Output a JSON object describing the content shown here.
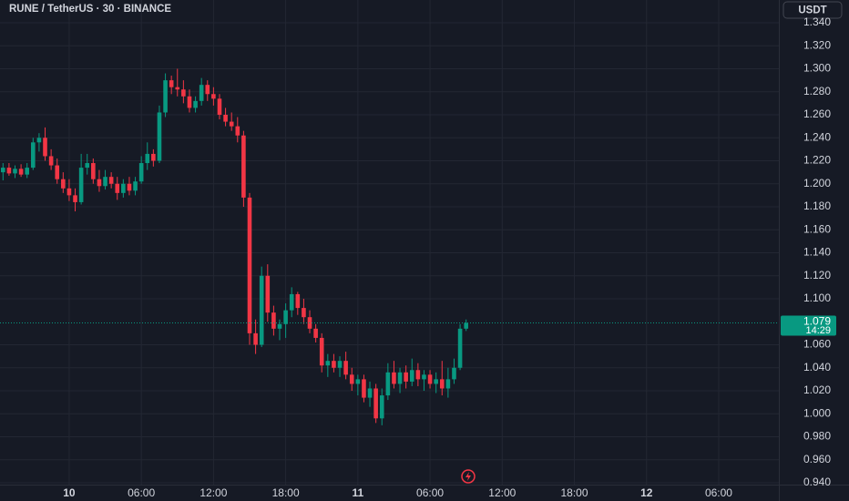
{
  "chart_data": {
    "type": "candlestick",
    "title": "RUNE / TetherUS · 30 · BINANCE",
    "currency_button": "USDT",
    "last_price": {
      "value": 1.079,
      "label": "1.079"
    },
    "countdown": "14:29",
    "up_color": "#089981",
    "down_color": "#f23645",
    "grid": true,
    "x": [
      "9 18:30",
      "9 19:00",
      "9 19:30",
      "9 20:00",
      "9 20:30",
      "9 21:00",
      "9 21:30",
      "9 22:00",
      "9 22:30",
      "9 23:00",
      "9 23:30",
      "10 00:00",
      "10 00:30",
      "10 01:00",
      "10 01:30",
      "10 02:00",
      "10 02:30",
      "10 03:00",
      "10 03:30",
      "10 04:00",
      "10 04:30",
      "10 05:00",
      "10 05:30",
      "10 06:00",
      "10 06:30",
      "10 07:00",
      "10 07:30",
      "10 08:00",
      "10 08:30",
      "10 09:00",
      "10 09:30",
      "10 10:00",
      "10 10:30",
      "10 11:00",
      "10 11:30",
      "10 12:00",
      "10 12:30",
      "10 13:00",
      "10 13:30",
      "10 14:00",
      "10 14:30",
      "10 15:00",
      "10 15:30",
      "10 16:00",
      "10 16:30",
      "10 17:00",
      "10 17:30",
      "10 18:00",
      "10 18:30",
      "10 19:00",
      "10 19:30",
      "10 20:00",
      "10 20:30",
      "10 21:00",
      "10 21:30",
      "10 22:00",
      "10 22:30",
      "10 23:00",
      "10 23:30",
      "11 00:00",
      "11 00:30",
      "11 01:00",
      "11 01:30",
      "11 02:00",
      "11 02:30",
      "11 03:00",
      "11 03:30",
      "11 04:00",
      "11 04:30",
      "11 05:00",
      "11 05:30",
      "11 06:00",
      "11 06:30",
      "11 07:00",
      "11 07:30",
      "11 08:00",
      "11 08:30",
      "11 09:00"
    ],
    "open": [
      1.21,
      1.214,
      1.209,
      1.213,
      1.208,
      1.214,
      1.236,
      1.24,
      1.224,
      1.216,
      1.204,
      1.196,
      1.19,
      1.184,
      1.214,
      1.218,
      1.204,
      1.198,
      1.206,
      1.2,
      1.192,
      1.2,
      1.194,
      1.202,
      1.218,
      1.226,
      1.22,
      1.262,
      1.29,
      1.284,
      1.282,
      1.276,
      1.266,
      1.272,
      1.286,
      1.278,
      1.274,
      1.26,
      1.254,
      1.25,
      1.242,
      1.188,
      1.07,
      1.06,
      1.12,
      1.088,
      1.074,
      1.078,
      1.09,
      1.104,
      1.092,
      1.084,
      1.074,
      1.066,
      1.042,
      1.046,
      1.04,
      1.046,
      1.034,
      1.026,
      1.03,
      1.014,
      1.022,
      0.996,
      1.016,
      1.036,
      1.026,
      1.036,
      1.028,
      1.038,
      1.03,
      1.034,
      1.026,
      1.03,
      1.022,
      1.03,
      1.04,
      1.074
    ],
    "high": [
      1.218,
      1.218,
      1.216,
      1.217,
      1.218,
      1.24,
      1.244,
      1.249,
      1.23,
      1.222,
      1.21,
      1.204,
      1.196,
      1.226,
      1.226,
      1.222,
      1.212,
      1.212,
      1.21,
      1.206,
      1.204,
      1.206,
      1.206,
      1.224,
      1.236,
      1.23,
      1.268,
      1.296,
      1.294,
      1.3,
      1.29,
      1.282,
      1.276,
      1.292,
      1.29,
      1.284,
      1.278,
      1.266,
      1.262,
      1.258,
      1.246,
      1.192,
      1.082,
      1.128,
      1.13,
      1.094,
      1.082,
      1.096,
      1.11,
      1.106,
      1.1,
      1.09,
      1.078,
      1.07,
      1.052,
      1.052,
      1.05,
      1.054,
      1.04,
      1.034,
      1.034,
      1.028,
      1.026,
      1.022,
      1.044,
      1.046,
      1.04,
      1.042,
      1.048,
      1.044,
      1.038,
      1.038,
      1.036,
      1.046,
      1.04,
      1.048,
      1.078,
      1.082
    ],
    "low": [
      1.203,
      1.207,
      1.205,
      1.206,
      1.205,
      1.212,
      1.228,
      1.22,
      1.212,
      1.2,
      1.192,
      1.185,
      1.176,
      1.182,
      1.208,
      1.2,
      1.193,
      1.195,
      1.196,
      1.186,
      1.188,
      1.19,
      1.19,
      1.2,
      1.212,
      1.215,
      1.218,
      1.258,
      1.278,
      1.276,
      1.27,
      1.262,
      1.262,
      1.268,
      1.272,
      1.268,
      1.256,
      1.25,
      1.246,
      1.236,
      1.18,
      1.06,
      1.052,
      1.058,
      1.08,
      1.068,
      1.064,
      1.066,
      1.084,
      1.086,
      1.078,
      1.07,
      1.062,
      1.036,
      1.032,
      1.036,
      1.032,
      1.03,
      1.02,
      1.016,
      1.01,
      1.006,
      0.992,
      0.99,
      1.012,
      1.022,
      1.018,
      1.022,
      1.024,
      1.024,
      1.02,
      1.022,
      1.018,
      1.016,
      1.014,
      1.026,
      1.038,
      1.072
    ],
    "close": [
      1.214,
      1.209,
      1.213,
      1.208,
      1.214,
      1.236,
      1.24,
      1.224,
      1.216,
      1.204,
      1.196,
      1.19,
      1.184,
      1.214,
      1.218,
      1.204,
      1.198,
      1.206,
      1.2,
      1.192,
      1.2,
      1.194,
      1.202,
      1.218,
      1.226,
      1.22,
      1.262,
      1.29,
      1.284,
      1.282,
      1.276,
      1.266,
      1.272,
      1.286,
      1.278,
      1.274,
      1.26,
      1.254,
      1.25,
      1.242,
      1.188,
      1.07,
      1.06,
      1.12,
      1.088,
      1.074,
      1.078,
      1.09,
      1.104,
      1.092,
      1.084,
      1.074,
      1.066,
      1.042,
      1.046,
      1.04,
      1.046,
      1.034,
      1.026,
      1.03,
      1.014,
      1.022,
      0.996,
      1.016,
      1.036,
      1.026,
      1.036,
      1.028,
      1.038,
      1.03,
      1.034,
      1.026,
      1.03,
      1.022,
      1.03,
      1.04,
      1.074,
      1.079
    ],
    "xlim": [
      "9 18:15",
      "12 11:00"
    ],
    "xticks": [
      {
        "value": "10 00:00",
        "label": "10"
      },
      {
        "value": "10 06:00",
        "label": "06:00"
      },
      {
        "value": "10 12:00",
        "label": "12:00"
      },
      {
        "value": "10 18:00",
        "label": "18:00"
      },
      {
        "value": "11 00:00",
        "label": "11"
      },
      {
        "value": "11 06:00",
        "label": "06:00"
      },
      {
        "value": "11 12:00",
        "label": "12:00"
      },
      {
        "value": "11 18:00",
        "label": "18:00"
      },
      {
        "value": "12 00:00",
        "label": "12"
      },
      {
        "value": "12 06:00",
        "label": "06:00"
      }
    ],
    "ylim": [
      0.94,
      1.34
    ],
    "yticks": [
      {
        "value": 0.94,
        "label": "0.940"
      },
      {
        "value": 0.96,
        "label": "0.960"
      },
      {
        "value": 0.98,
        "label": "0.980"
      },
      {
        "value": 1.0,
        "label": "1.000"
      },
      {
        "value": 1.02,
        "label": "1.020"
      },
      {
        "value": 1.04,
        "label": "1.040"
      },
      {
        "value": 1.06,
        "label": "1.060"
      },
      {
        "value": 1.1,
        "label": "1.100"
      },
      {
        "value": 1.12,
        "label": "1.120"
      },
      {
        "value": 1.14,
        "label": "1.140"
      },
      {
        "value": 1.16,
        "label": "1.160"
      },
      {
        "value": 1.18,
        "label": "1.180"
      },
      {
        "value": 1.2,
        "label": "1.200"
      },
      {
        "value": 1.22,
        "label": "1.220"
      },
      {
        "value": 1.24,
        "label": "1.240"
      },
      {
        "value": 1.26,
        "label": "1.260"
      },
      {
        "value": 1.28,
        "label": "1.280"
      },
      {
        "value": 1.3,
        "label": "1.300"
      },
      {
        "value": 1.32,
        "label": "1.320"
      },
      {
        "value": 1.34,
        "label": "1.340"
      }
    ]
  }
}
